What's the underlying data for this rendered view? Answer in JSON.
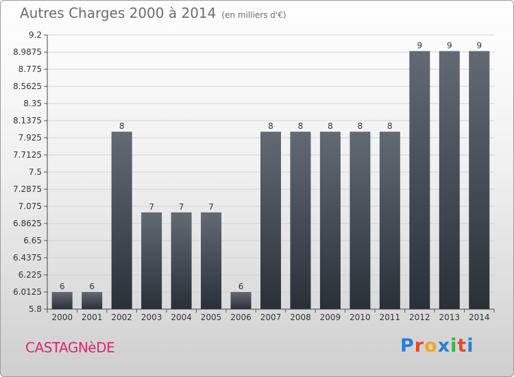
{
  "header": {
    "title": "Autres Charges 2000 à 2014",
    "unit": "(en milliers d'€)"
  },
  "footer": {
    "commune": "CASTAGNèDE",
    "logo_letters": [
      "P",
      "r",
      "o",
      "x",
      "i",
      "t",
      "i"
    ],
    "logo_colors": [
      "#2a7fd4",
      "#e8492c",
      "#f5a623",
      "#2a7fd4",
      "#36b24a",
      "#e8492c",
      "#2a7fd4"
    ]
  },
  "chart_data": {
    "type": "bar",
    "categories": [
      "2000",
      "2001",
      "2002",
      "2003",
      "2004",
      "2005",
      "2006",
      "2007",
      "2008",
      "2009",
      "2010",
      "2011",
      "2012",
      "2013",
      "2014"
    ],
    "values": [
      6,
      6,
      8,
      7,
      7,
      7,
      6,
      8,
      8,
      8,
      8,
      8,
      9,
      9,
      9
    ],
    "bar_heights": [
      6.0125,
      6.0125,
      8.0,
      7.0,
      7.0,
      7.0,
      6.0125,
      8.0,
      8.0,
      8.0,
      8.0,
      8.0,
      9.0,
      9.0,
      9.0
    ],
    "data_labels": [
      "6",
      "6",
      "8",
      "7",
      "7",
      "7",
      "6",
      "8",
      "8",
      "8",
      "8",
      "8",
      "9",
      "9",
      "9"
    ],
    "y_ticks": [
      "5.8",
      "6.0125",
      "6.225",
      "6.4375",
      "6.65",
      "6.8625",
      "7.075",
      "7.2875",
      "7.5",
      "7.7125",
      "7.925",
      "8.1375",
      "8.35",
      "8.5625",
      "8.775",
      "8.9875",
      "9.2"
    ],
    "ylim": [
      5.8,
      9.2
    ],
    "grid": true,
    "bar_color": "#3f464f"
  }
}
